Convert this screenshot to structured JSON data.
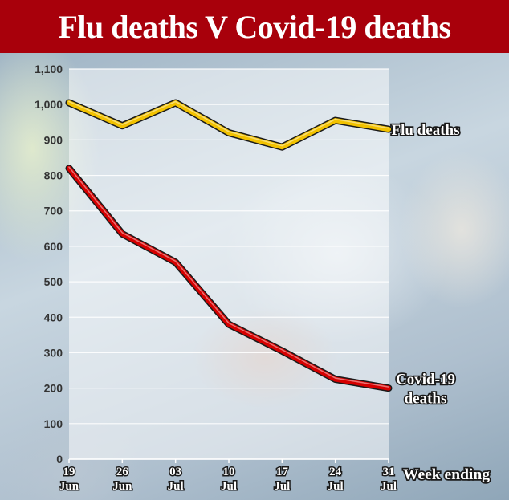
{
  "chart_data": {
    "type": "line",
    "title": "Flu deaths V Covid-19 deaths",
    "xlabel": "Week ending",
    "ylabel": "",
    "categories": [
      {
        "day": "19",
        "month": "Jun"
      },
      {
        "day": "26",
        "month": "Jun"
      },
      {
        "day": "03",
        "month": "Jul"
      },
      {
        "day": "10",
        "month": "Jul"
      },
      {
        "day": "17",
        "month": "Jul"
      },
      {
        "day": "24",
        "month": "Jul"
      },
      {
        "day": "31",
        "month": "Jul"
      }
    ],
    "ylim": [
      0,
      1100
    ],
    "yticks": [
      {
        "value": 0,
        "label": "0"
      },
      {
        "value": 100,
        "label": "100"
      },
      {
        "value": 200,
        "label": "200"
      },
      {
        "value": 300,
        "label": "300"
      },
      {
        "value": 400,
        "label": "400"
      },
      {
        "value": 500,
        "label": "500"
      },
      {
        "value": 600,
        "label": "600"
      },
      {
        "value": 700,
        "label": "700"
      },
      {
        "value": 800,
        "label": "800"
      },
      {
        "value": 900,
        "label": "900"
      },
      {
        "value": 1000,
        "label": "1,000"
      },
      {
        "value": 1100,
        "label": "1,100"
      }
    ],
    "grid": true,
    "series": [
      {
        "name": "Flu deaths",
        "label_lines": [
          "Flu deaths"
        ],
        "color": "#f2c200",
        "values": [
          1005,
          940,
          1005,
          920,
          880,
          955,
          930
        ]
      },
      {
        "name": "Covid-19 deaths",
        "label_lines": [
          "Covid-19",
          "deaths"
        ],
        "color": "#d60000",
        "values": [
          820,
          635,
          555,
          380,
          305,
          225,
          200
        ]
      }
    ]
  }
}
